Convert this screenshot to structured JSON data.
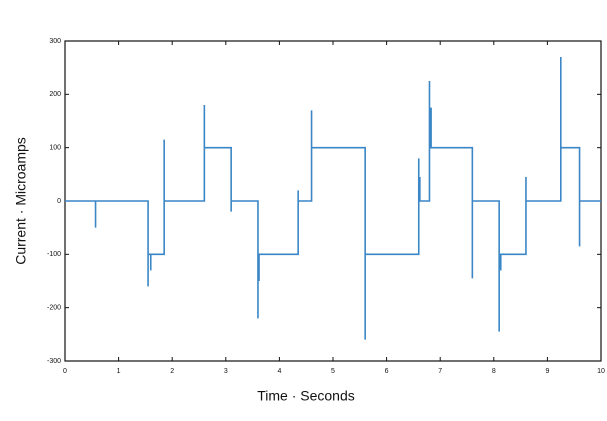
{
  "chart_data": {
    "type": "line",
    "xlabel": "Time · Seconds",
    "ylabel": "Current · Microamps",
    "x": [
      0,
      0.57,
      0.57,
      0.57,
      1.55,
      1.55,
      1.55,
      1.6,
      1.6,
      1.6,
      1.85,
      1.85,
      1.85,
      2.6,
      2.6,
      2.6,
      3.1,
      3.1,
      3.1,
      3.6,
      3.6,
      3.6,
      3.62,
      3.62,
      3.62,
      4.35,
      4.35,
      4.35,
      4.6,
      4.6,
      4.6,
      5.6,
      5.6,
      5.6,
      6.6,
      6.6,
      6.6,
      6.62,
      6.62,
      6.62,
      6.8,
      6.8,
      6.8,
      6.83,
      6.83,
      6.83,
      7.6,
      7.6,
      7.6,
      8.1,
      8.1,
      8.1,
      8.13,
      8.13,
      8.13,
      8.6,
      8.6,
      8.6,
      9.25,
      9.25,
      9.25,
      9.6,
      9.6,
      9.6,
      10
    ],
    "series": [
      {
        "color": "#3a86c6",
        "values": [
          0,
          0,
          -50,
          0,
          0,
          -160,
          -100,
          -100,
          -130,
          -100,
          -100,
          115,
          0,
          0,
          180,
          100,
          100,
          -20,
          0,
          0,
          -220,
          -100,
          -100,
          -150,
          -100,
          -100,
          20,
          0,
          0,
          170,
          100,
          100,
          -260,
          -100,
          -100,
          80,
          0,
          0,
          45,
          0,
          0,
          225,
          100,
          100,
          175,
          100,
          100,
          -145,
          0,
          0,
          -245,
          -100,
          -100,
          -130,
          -100,
          -100,
          45,
          0,
          0,
          270,
          100,
          100,
          -85,
          0,
          0
        ]
      }
    ],
    "xlim": [
      0,
      10
    ],
    "xticks": [
      0,
      1,
      2,
      3,
      4,
      5,
      6,
      7,
      8,
      9,
      10
    ],
    "ylim": [
      -300,
      300
    ],
    "yticks": [
      -300,
      -200,
      -100,
      0,
      100,
      200,
      300
    ]
  }
}
